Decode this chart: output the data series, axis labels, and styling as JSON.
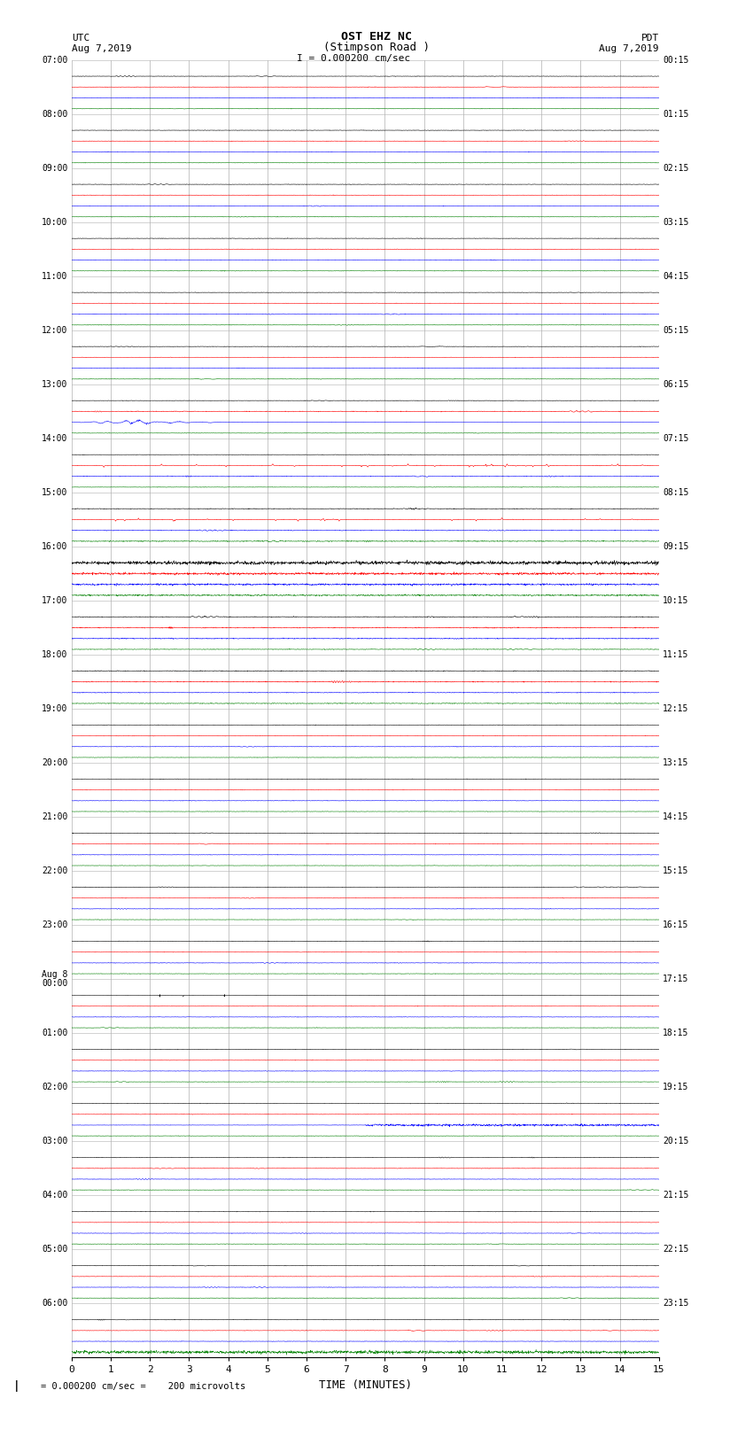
{
  "title_line1": "OST EHZ NC",
  "title_line2": "(Stimpson Road )",
  "scale_text": "I = 0.000200 cm/sec",
  "left_label_top": "UTC",
  "left_label_date": "Aug 7,2019",
  "right_label_top": "PDT",
  "right_label_date": "Aug 7,2019",
  "bottom_label": "TIME (MINUTES)",
  "bottom_note": "    = 0.000200 cm/sec =    200 microvolts",
  "fig_width": 8.5,
  "fig_height": 16.13,
  "dpi": 100,
  "bg_color": "#ffffff",
  "grid_color": "#b0b0b0",
  "trace_colors": [
    "black",
    "red",
    "blue",
    "green"
  ],
  "n_hour_groups": 24,
  "x_min": 0,
  "x_max": 15,
  "x_ticks": [
    0,
    1,
    2,
    3,
    4,
    5,
    6,
    7,
    8,
    9,
    10,
    11,
    12,
    13,
    14,
    15
  ],
  "left_times": [
    "07:00",
    "08:00",
    "09:00",
    "10:00",
    "11:00",
    "12:00",
    "13:00",
    "14:00",
    "15:00",
    "16:00",
    "17:00",
    "18:00",
    "19:00",
    "20:00",
    "21:00",
    "22:00",
    "23:00",
    "Aug 8\n00:00",
    "01:00",
    "02:00",
    "03:00",
    "04:00",
    "05:00",
    "06:00"
  ],
  "right_times": [
    "00:15",
    "01:15",
    "02:15",
    "03:15",
    "04:15",
    "05:15",
    "06:15",
    "07:15",
    "08:15",
    "09:15",
    "10:15",
    "11:15",
    "12:15",
    "13:15",
    "14:15",
    "15:15",
    "16:15",
    "17:15",
    "18:15",
    "19:15",
    "20:15",
    "21:15",
    "22:15",
    "23:15"
  ]
}
